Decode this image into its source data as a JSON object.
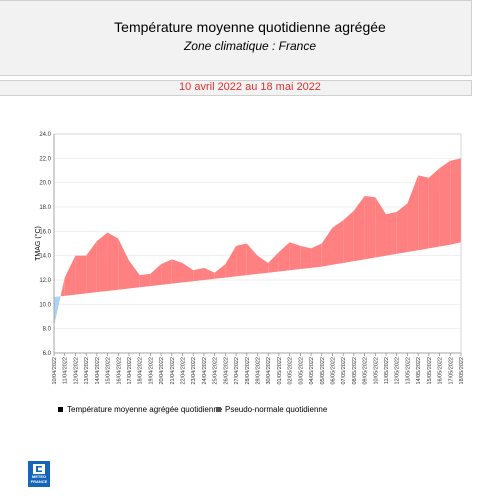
{
  "header": {
    "title": "Température moyenne quotidienne agrégée",
    "subtitle": "Zone climatique : France",
    "date_range": "10 avril 2022 au 18 mai 2022"
  },
  "legend": {
    "item1": "Température moyenne agrégée  quotidienne",
    "item2": "Pseudo-normale quotidienne"
  },
  "logo": {
    "line1": "METEO",
    "line2": "FRANCE"
  },
  "colors": {
    "above_fill": "#ff8080",
    "below_fill": "#a8d4f5",
    "plot_bg": "#ffffff",
    "axis": "#888888",
    "grid": "#e6e6e6",
    "legend_swatch1": "#000000",
    "legend_swatch2": "#555555"
  },
  "chart_data": {
    "type": "area",
    "ylabel": "TMAG (°C)",
    "ylim": [
      6.0,
      24.0
    ],
    "yticks": [
      "6.0",
      "8.0",
      "10.0",
      "12.0",
      "14.0",
      "16.0",
      "18.0",
      "20.0",
      "22.0",
      "24.0"
    ],
    "categories": [
      "10/04/2022",
      "11/04/2022",
      "12/04/2022",
      "13/04/2022",
      "14/04/2022",
      "15/04/2022",
      "16/04/2022",
      "17/04/2022",
      "18/04/2022",
      "19/04/2022",
      "20/04/2022",
      "21/04/2022",
      "22/04/2022",
      "23/04/2022",
      "24/04/2022",
      "25/04/2022",
      "26/04/2022",
      "27/04/2022",
      "28/04/2022",
      "29/04/2022",
      "30/04/2022",
      "01/05/2022",
      "02/05/2022",
      "03/05/2022",
      "04/05/2022",
      "05/05/2022",
      "06/05/2022",
      "07/05/2022",
      "08/05/2022",
      "09/05/2022",
      "10/05/2022",
      "11/05/2022",
      "12/05/2022",
      "13/05/2022",
      "14/05/2022",
      "15/05/2022",
      "16/05/2022",
      "17/05/2022",
      "18/05/2022"
    ],
    "series": [
      {
        "name": "Température moyenne agrégée  quotidienne",
        "values": [
          8.2,
          12.2,
          14.0,
          14.0,
          15.2,
          15.9,
          15.4,
          13.6,
          12.4,
          12.5,
          13.3,
          13.7,
          13.4,
          12.8,
          13.0,
          12.6,
          13.3,
          14.8,
          15.0,
          14.0,
          13.4,
          14.3,
          15.1,
          14.8,
          14.6,
          15.0,
          16.3,
          16.9,
          17.7,
          18.9,
          18.8,
          17.4,
          17.6,
          18.3,
          20.6,
          20.4,
          21.2,
          21.8,
          22.0
        ]
      },
      {
        "name": "Pseudo-normale quotidienne",
        "values": [
          10.6,
          10.7,
          10.8,
          10.9,
          11.0,
          11.1,
          11.2,
          11.3,
          11.4,
          11.5,
          11.6,
          11.7,
          11.8,
          11.9,
          12.0,
          12.1,
          12.2,
          12.3,
          12.4,
          12.5,
          12.6,
          12.7,
          12.8,
          12.9,
          13.0,
          13.1,
          13.25,
          13.4,
          13.55,
          13.7,
          13.85,
          14.0,
          14.15,
          14.3,
          14.45,
          14.6,
          14.75,
          14.9,
          15.1
        ]
      }
    ],
    "grid": true
  }
}
